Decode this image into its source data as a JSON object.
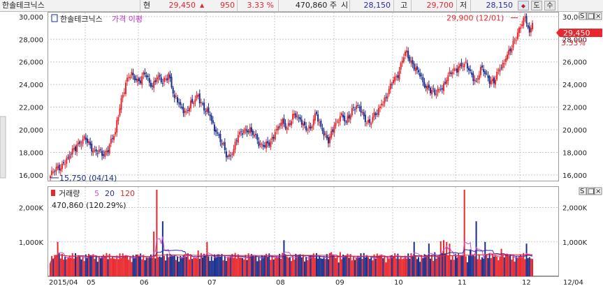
{
  "header": {
    "stock_name": "한솔테크닉스",
    "price_label": "현",
    "price": "29,450",
    "change_arrow": "▲",
    "change": "950",
    "change_pct": "3.33 %",
    "volume": "470,860 주",
    "open_label": "시",
    "open": "28,150",
    "high_label": "고",
    "high": "29,700",
    "low_label": "저",
    "low": "28,150",
    "btn_1": "도",
    "btn_2": "수"
  },
  "price_panel": {
    "legend_name": "한솔테크닉스",
    "legend_tabs": "가격 이평",
    "max_annotation": "29,900 (12/01)",
    "min_annotation": "15,750 (04/14)",
    "current_price": "29,450",
    "current_pct": "3.33%",
    "ticks": [
      "30,000",
      "28,000",
      "26,000",
      "24,000",
      "22,000",
      "20,000",
      "18,000",
      "16,000"
    ],
    "panel_buttons": [
      "S",
      "□",
      "×"
    ]
  },
  "volume_panel": {
    "legend_name": "거래량",
    "ma_labels": [
      "5",
      "20",
      "120"
    ],
    "last_value": "470,860 (120.29%)",
    "ticks": [
      "2,000K",
      "1,000K"
    ],
    "panel_buttons": [
      "S",
      "□",
      "×"
    ]
  },
  "x_axis": {
    "labels": [
      "2015/04",
      "05",
      "06",
      "07",
      "08",
      "09",
      "10",
      "11",
      "12"
    ],
    "right_label": "12/04"
  },
  "colors": {
    "up": "#e8262b",
    "down": "#1a2c8a",
    "ma5": "#d14fd1",
    "ma20": "#2a2aa8",
    "ma120": "#e8262b",
    "grid": "#c8c8c8"
  },
  "chart_data": {
    "type": "candlestick",
    "price_ylim": [
      15500,
      30300
    ],
    "volume_ylim": [
      0,
      2600000
    ],
    "highlights": {
      "max": {
        "date": "12/01",
        "value": 29900
      },
      "min": {
        "date": "04/14",
        "value": 15750
      },
      "last": {
        "date": "12/04",
        "value": 29450
      }
    },
    "anchors": [
      [
        0,
        15900
      ],
      [
        3,
        16300
      ],
      [
        8,
        17000
      ],
      [
        12,
        17500
      ],
      [
        18,
        18700
      ],
      [
        24,
        19100
      ],
      [
        30,
        18200
      ],
      [
        36,
        17700
      ],
      [
        40,
        18700
      ],
      [
        44,
        19800
      ],
      [
        48,
        22800
      ],
      [
        52,
        24600
      ],
      [
        56,
        24800
      ],
      [
        60,
        24300
      ],
      [
        64,
        24900
      ],
      [
        68,
        23800
      ],
      [
        72,
        24600
      ],
      [
        76,
        24100
      ],
      [
        80,
        25000
      ],
      [
        84,
        22800
      ],
      [
        88,
        22200
      ],
      [
        92,
        21600
      ],
      [
        96,
        22400
      ],
      [
        100,
        23100
      ],
      [
        104,
        21700
      ],
      [
        108,
        21200
      ],
      [
        112,
        19800
      ],
      [
        116,
        18700
      ],
      [
        120,
        17600
      ],
      [
        124,
        18300
      ],
      [
        128,
        19800
      ],
      [
        132,
        20100
      ],
      [
        136,
        19800
      ],
      [
        140,
        19100
      ],
      [
        144,
        18500
      ],
      [
        148,
        18600
      ],
      [
        152,
        19800
      ],
      [
        156,
        20600
      ],
      [
        160,
        20200
      ],
      [
        164,
        21400
      ],
      [
        168,
        21000
      ],
      [
        172,
        20400
      ],
      [
        176,
        20100
      ],
      [
        180,
        21400
      ],
      [
        184,
        19900
      ],
      [
        188,
        18800
      ],
      [
        192,
        20400
      ],
      [
        196,
        21200
      ],
      [
        200,
        20700
      ],
      [
        204,
        21900
      ],
      [
        208,
        22100
      ],
      [
        212,
        21200
      ],
      [
        216,
        20600
      ],
      [
        220,
        21300
      ],
      [
        224,
        22300
      ],
      [
        228,
        23000
      ],
      [
        232,
        24400
      ],
      [
        236,
        25200
      ],
      [
        240,
        26900
      ],
      [
        244,
        26100
      ],
      [
        248,
        25300
      ],
      [
        252,
        24200
      ],
      [
        256,
        23700
      ],
      [
        260,
        23100
      ],
      [
        264,
        23600
      ],
      [
        268,
        24400
      ],
      [
        272,
        25100
      ],
      [
        276,
        25600
      ],
      [
        280,
        25800
      ],
      [
        284,
        25200
      ],
      [
        288,
        24300
      ],
      [
        292,
        25500
      ],
      [
        296,
        24600
      ],
      [
        300,
        24100
      ],
      [
        304,
        25400
      ],
      [
        308,
        26300
      ],
      [
        312,
        27200
      ],
      [
        316,
        28600
      ],
      [
        320,
        29900
      ],
      [
        322,
        29400
      ],
      [
        324,
        28600
      ],
      [
        326,
        29450
      ]
    ],
    "volume_spikes": [
      [
        5,
        1000000
      ],
      [
        70,
        1300000
      ],
      [
        72,
        2520000
      ],
      [
        76,
        1600000
      ],
      [
        100,
        750000
      ],
      [
        106,
        1000000
      ],
      [
        158,
        1050000
      ],
      [
        190,
        700000
      ],
      [
        196,
        700000
      ],
      [
        246,
        1000000
      ],
      [
        256,
        950000
      ],
      [
        260,
        700000
      ],
      [
        264,
        1020000
      ],
      [
        266,
        1050000
      ],
      [
        268,
        1000000
      ],
      [
        270,
        950000
      ],
      [
        280,
        2520000
      ],
      [
        284,
        780000
      ],
      [
        288,
        1600000
      ],
      [
        294,
        1000000
      ],
      [
        305,
        800000
      ],
      [
        322,
        950000
      ],
      [
        330,
        850000
      ],
      [
        360,
        950000
      ],
      [
        364,
        800000
      ]
    ],
    "volume_base": 380000
  }
}
